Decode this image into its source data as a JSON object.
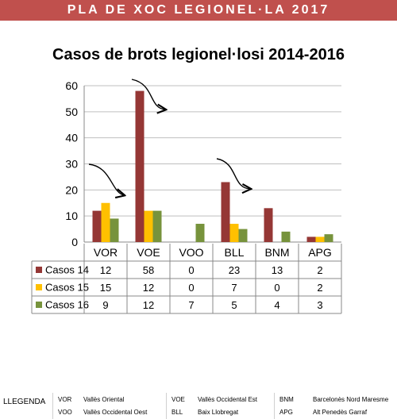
{
  "banner": {
    "title": "PLA DE XOC LEGIONEL·LA 2017"
  },
  "colors": {
    "banner": "#c0504d",
    "casos14": "#953735",
    "casos15": "#ffc000",
    "casos16": "#77933c"
  },
  "chart_data": {
    "type": "bar",
    "title": "Casos de brots legionel·losi 2014-2016",
    "categories": [
      "VOR",
      "VOE",
      "VOO",
      "BLL",
      "BNM",
      "APG"
    ],
    "series": [
      {
        "name": "Casos 14",
        "color": "#953735",
        "values": [
          12,
          58,
          0,
          23,
          13,
          2
        ]
      },
      {
        "name": "Casos 15",
        "color": "#ffc000",
        "values": [
          15,
          12,
          0,
          7,
          0,
          2
        ]
      },
      {
        "name": "Casos 16",
        "color": "#77933c",
        "values": [
          9,
          12,
          7,
          5,
          4,
          3
        ]
      }
    ],
    "ylim": [
      0,
      60
    ],
    "yticks": [
      0,
      10,
      20,
      30,
      40,
      50,
      60
    ],
    "grid": true,
    "legend": "data-table",
    "annotations": [
      "curved-arrow-VOR",
      "curved-arrow-VOE",
      "curved-arrow-BLL"
    ]
  },
  "legend": {
    "title": "LLEGENDA",
    "items": [
      {
        "code": "VOR",
        "name": "Vallès Oriental"
      },
      {
        "code": "VOO",
        "name": "Vallès Occidental Oest"
      },
      {
        "code": "VOE",
        "name": "Vallès  Occidental Est"
      },
      {
        "code": "BLL",
        "name": "Baix Llobregat"
      },
      {
        "code": "BNM",
        "name": "Barcelonès Nord Maresme"
      },
      {
        "code": "APG",
        "name": "Alt Penedès Garraf"
      }
    ]
  }
}
